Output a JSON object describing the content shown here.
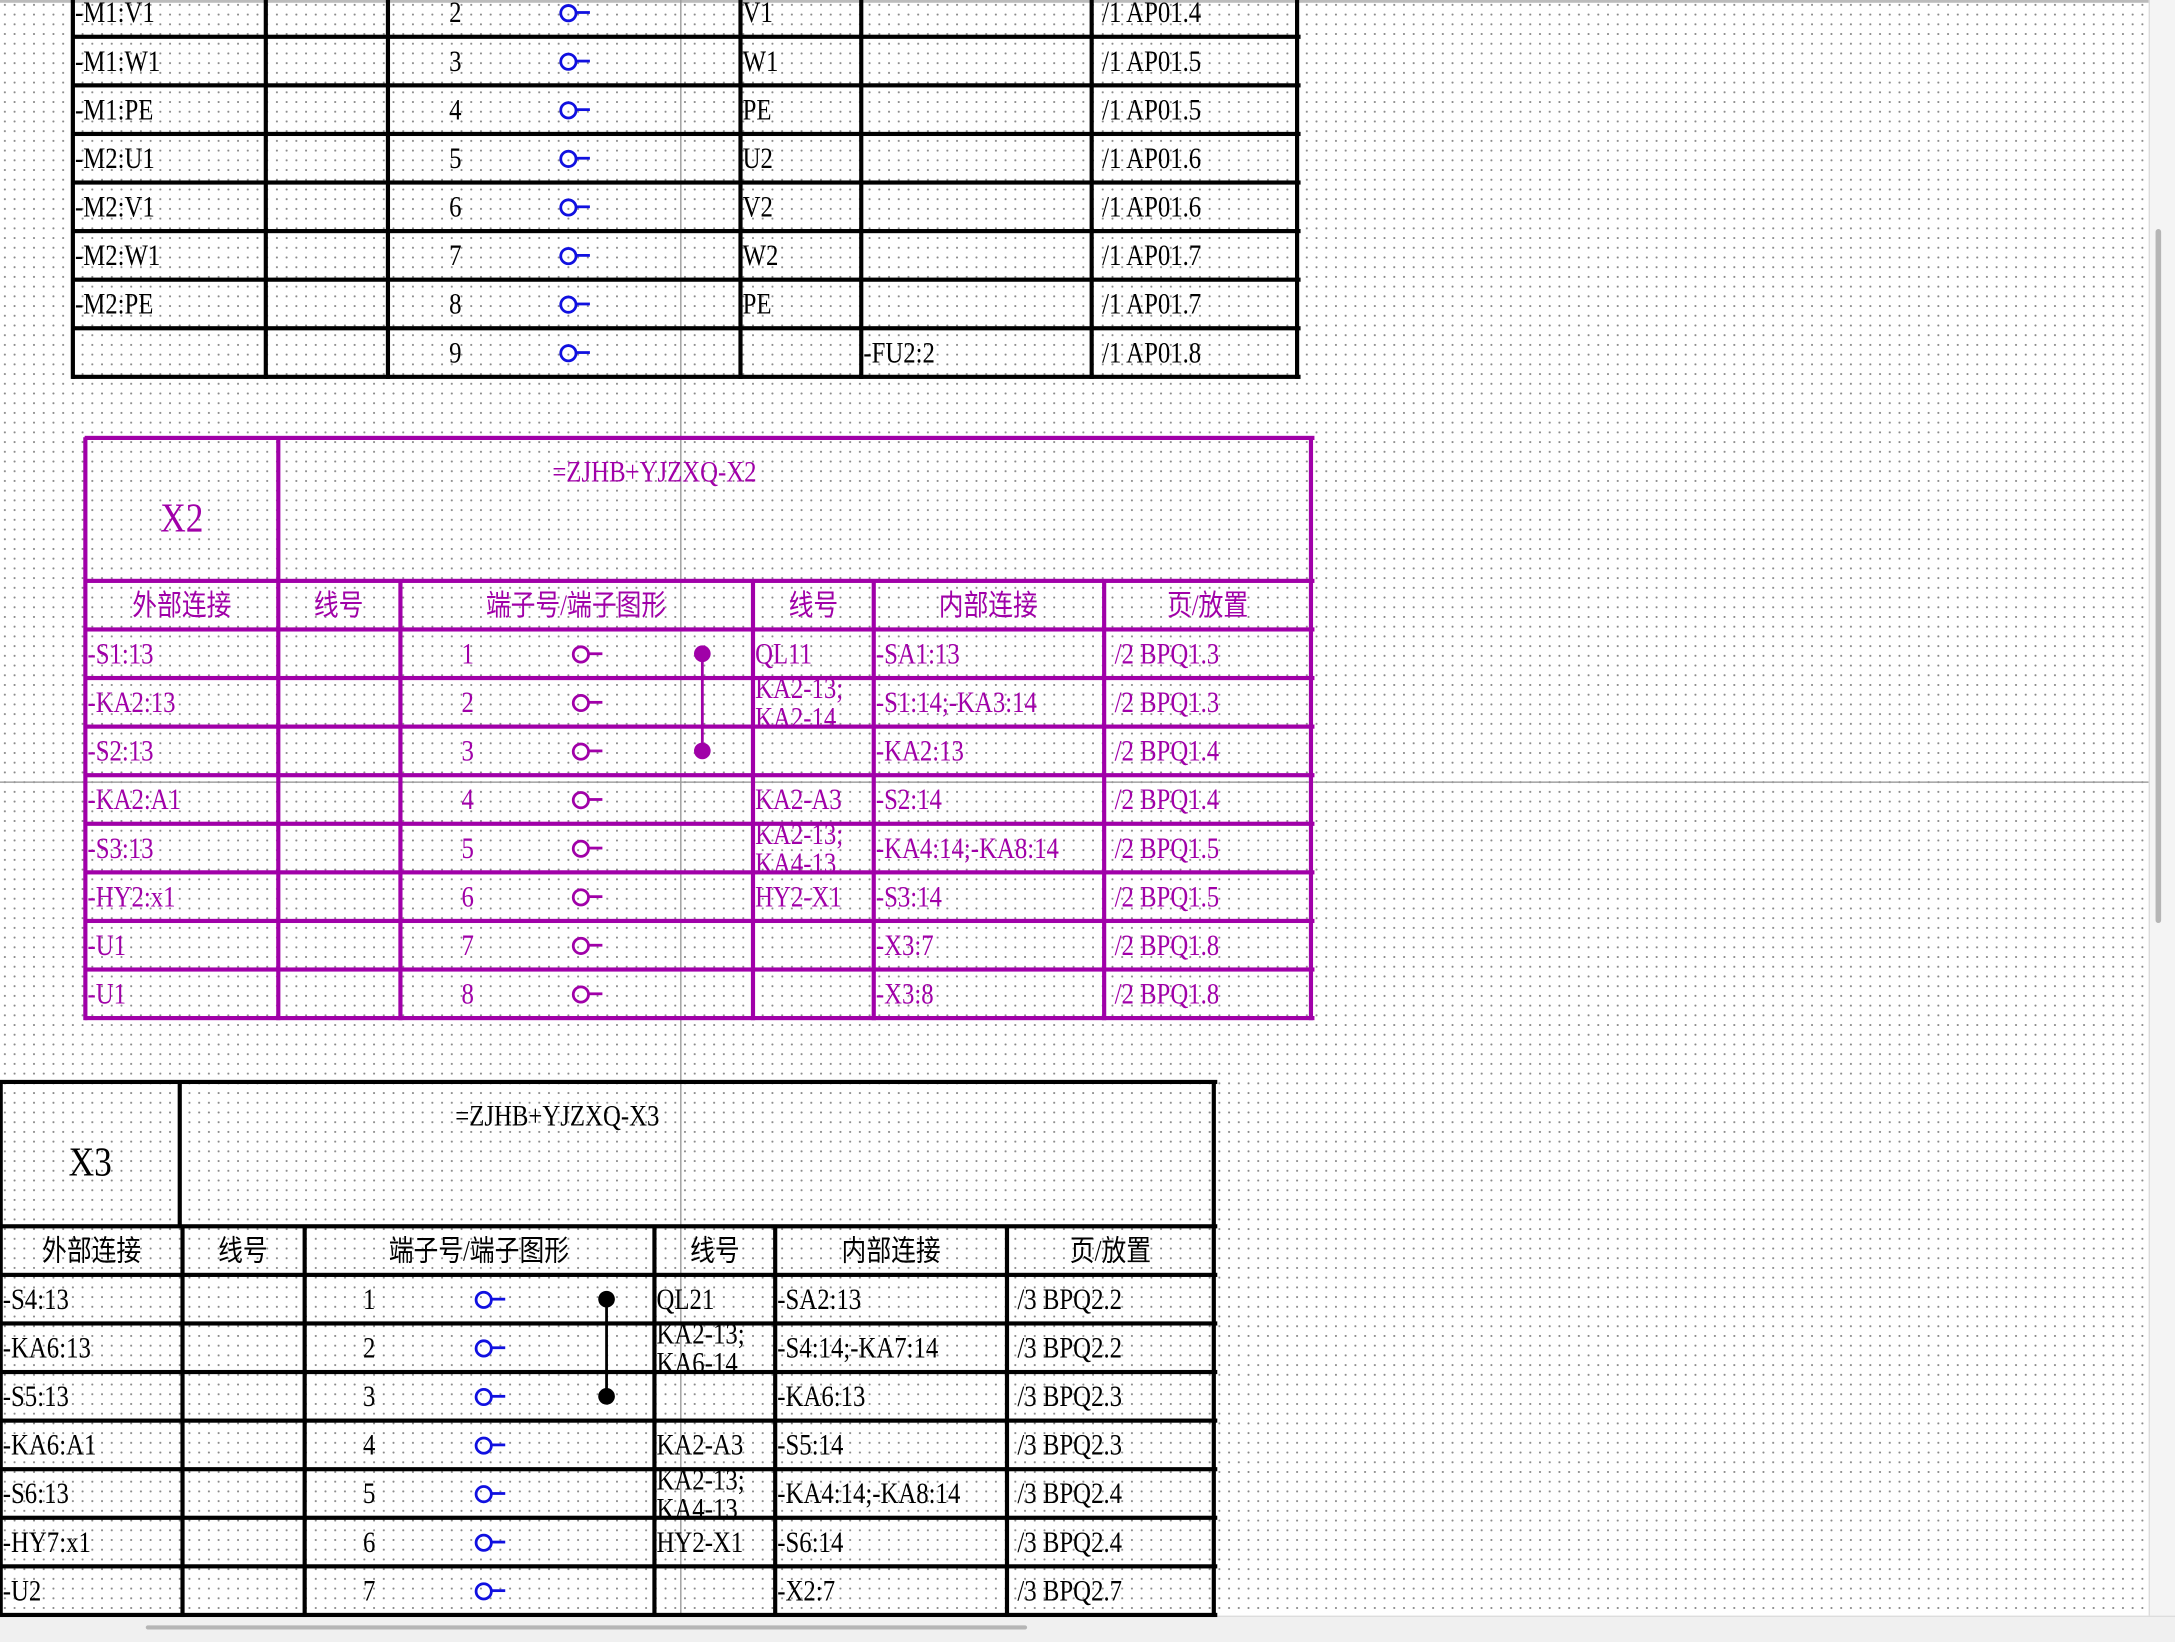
{
  "colors": {
    "black_table": "#000000",
    "terminal_blue": "#1010e0",
    "magenta": "#a000a8"
  },
  "table_x1": {
    "rows": [
      {
        "ext": "-M1:V1",
        "wire": "",
        "num": "2",
        "wire2": "V1",
        "internal": "",
        "page": "/1 AP01.4"
      },
      {
        "ext": "-M1:W1",
        "wire": "",
        "num": "3",
        "wire2": "W1",
        "internal": "",
        "page": "/1 AP01.5"
      },
      {
        "ext": "-M1:PE",
        "wire": "",
        "num": "4",
        "wire2": "PE",
        "internal": "",
        "page": "/1 AP01.5"
      },
      {
        "ext": "-M2:U1",
        "wire": "",
        "num": "5",
        "wire2": "U2",
        "internal": "",
        "page": "/1 AP01.6"
      },
      {
        "ext": "-M2:V1",
        "wire": "",
        "num": "6",
        "wire2": "V2",
        "internal": "",
        "page": "/1 AP01.6"
      },
      {
        "ext": "-M2:W1",
        "wire": "",
        "num": "7",
        "wire2": "W2",
        "internal": "",
        "page": "/1 AP01.7"
      },
      {
        "ext": "-M2:PE",
        "wire": "",
        "num": "8",
        "wire2": "PE",
        "internal": "",
        "page": "/1 AP01.7"
      },
      {
        "ext": "",
        "wire": "",
        "num": "9",
        "wire2": "",
        "internal": "-FU2:2",
        "page": "/1 AP01.8"
      }
    ]
  },
  "table_x2": {
    "name": "X2",
    "designation": "=ZJHB+YJZXQ-X2",
    "headers": [
      "外部连接",
      "线号",
      "端子号/端子图形",
      "线号",
      "内部连接",
      "页/放置"
    ],
    "rows": [
      {
        "ext": "-S1:13",
        "wire": "",
        "num": "1",
        "wire2": "QL11",
        "internal": "-SA1:13",
        "page": "/2 BPQ1.3"
      },
      {
        "ext": "-KA2:13",
        "wire": "",
        "num": "2",
        "wire2": "KA2-13;KA2-14",
        "internal": "-S1:14;-KA3:14",
        "page": "/2 BPQ1.3"
      },
      {
        "ext": "-S2:13",
        "wire": "",
        "num": "3",
        "wire2": "",
        "internal": "-KA2:13",
        "page": "/2 BPQ1.4"
      },
      {
        "ext": "-KA2:A1",
        "wire": "",
        "num": "4",
        "wire2": "KA2-A3",
        "internal": "-S2:14",
        "page": "/2 BPQ1.4"
      },
      {
        "ext": "-S3:13",
        "wire": "",
        "num": "5",
        "wire2": "KA2-13;KA4-13",
        "internal": "-KA4:14;-KA8:14",
        "page": "/2 BPQ1.5"
      },
      {
        "ext": "-HY2:x1",
        "wire": "",
        "num": "6",
        "wire2": "HY2-X1",
        "internal": "-S3:14",
        "page": "/2 BPQ1.5"
      },
      {
        "ext": "-U1",
        "wire": "",
        "num": "7",
        "wire2": "",
        "internal": "-X3:7",
        "page": "/2 BPQ1.8"
      },
      {
        "ext": "-U1",
        "wire": "",
        "num": "8",
        "wire2": "",
        "internal": "-X3:8",
        "page": "/2 BPQ1.8"
      }
    ]
  },
  "table_x3": {
    "name": "X3",
    "designation": "=ZJHB+YJZXQ-X3",
    "headers": [
      "外部连接",
      "线号",
      "端子号/端子图形",
      "线号",
      "内部连接",
      "页/放置"
    ],
    "rows": [
      {
        "ext": "-S4:13",
        "wire": "",
        "num": "1",
        "wire2": "QL21",
        "internal": "-SA2:13",
        "page": "/3 BPQ2.2"
      },
      {
        "ext": "-KA6:13",
        "wire": "",
        "num": "2",
        "wire2": "KA2-13;KA6-14",
        "internal": "-S4:14;-KA7:14",
        "page": "/3 BPQ2.2"
      },
      {
        "ext": "-S5:13",
        "wire": "",
        "num": "3",
        "wire2": "",
        "internal": "-KA6:13",
        "page": "/3 BPQ2.3"
      },
      {
        "ext": "-KA6:A1",
        "wire": "",
        "num": "4",
        "wire2": "KA2-A3",
        "internal": "-S5:14",
        "page": "/3 BPQ2.3"
      },
      {
        "ext": "-S6:13",
        "wire": "",
        "num": "5",
        "wire2": "KA2-13;KA4-13",
        "internal": "-KA4:14;-KA8:14",
        "page": "/3 BPQ2.4"
      },
      {
        "ext": "-HY7:x1",
        "wire": "",
        "num": "6",
        "wire2": "HY2-X1",
        "internal": "-S6:14",
        "page": "/3 BPQ2.4"
      },
      {
        "ext": "-U2",
        "wire": "",
        "num": "7",
        "wire2": "",
        "internal": "-X2:7",
        "page": "/3 BPQ2.7"
      }
    ]
  }
}
